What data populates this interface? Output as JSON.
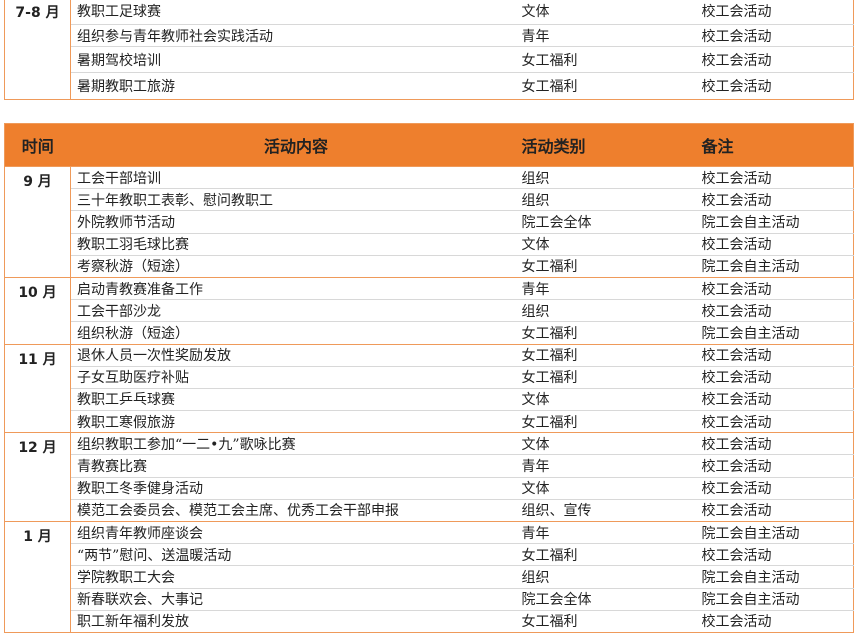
{
  "top_table": {
    "groups": [
      {
        "time": "7-8 月",
        "rows": [
          [
            "教职工足球赛",
            "文体",
            "校工会活动"
          ],
          [
            "组织参与青年教师社会实践活动",
            "青年",
            "校工会活动"
          ],
          [
            "暑期驾校培训",
            "女工福利",
            "校工会活动"
          ],
          [
            "暑期教职工旅游",
            "女工福利",
            "校工会活动"
          ]
        ]
      }
    ]
  },
  "table": {
    "header": [
      "时间",
      "活动内容",
      "活动类别",
      "备注"
    ],
    "groups": [
      {
        "time": "9 月",
        "rows": [
          [
            "工会干部培训",
            "组织",
            "校工会活动"
          ],
          [
            "三十年教职工表彰、慰问教职工",
            "组织",
            "校工会活动"
          ],
          [
            "外院教师节活动",
            "院工会全体",
            "院工会自主活动"
          ],
          [
            "教职工羽毛球比赛",
            "文体",
            "校工会活动"
          ],
          [
            "考察秋游（短途）",
            "女工福利",
            "院工会自主活动"
          ]
        ]
      },
      {
        "time": "10 月",
        "rows": [
          [
            "启动青教赛准备工作",
            "青年",
            "校工会活动"
          ],
          [
            "工会干部沙龙",
            "组织",
            "校工会活动"
          ],
          [
            "组织秋游（短途）",
            "女工福利",
            "院工会自主活动"
          ]
        ]
      },
      {
        "time": "11 月",
        "rows": [
          [
            "退休人员一次性奖励发放",
            "女工福利",
            "校工会活动"
          ],
          [
            "子女互助医疗补贴",
            "女工福利",
            "校工会活动"
          ],
          [
            "教职工乒乓球赛",
            "文体",
            "校工会活动"
          ],
          [
            "教职工寒假旅游",
            "女工福利",
            "校工会活动"
          ]
        ]
      },
      {
        "time": "12 月",
        "rows": [
          [
            "组织教职工参加“一二•九”歌咏比赛",
            "文体",
            "校工会活动"
          ],
          [
            "青教赛比赛",
            "青年",
            "校工会活动"
          ],
          [
            "教职工冬季健身活动",
            "文体",
            "校工会活动"
          ],
          [
            "模范工会委员会、模范工会主席、优秀工会干部申报",
            "组织、宣传",
            "校工会活动"
          ]
        ]
      },
      {
        "time": "1 月",
        "rows": [
          [
            "组织青年教师座谈会",
            "青年",
            "院工会自主活动"
          ],
          [
            "“两节”慰问、送温暖活动",
            "女工福利",
            "校工会活动"
          ],
          [
            "学院教职工大会",
            "组织",
            "院工会自主活动"
          ],
          [
            "新春联欢会、大事记",
            "院工会全体",
            "院工会自主活动"
          ],
          [
            "职工新年福利发放",
            "女工福利",
            "校工会活动"
          ]
        ]
      }
    ]
  }
}
